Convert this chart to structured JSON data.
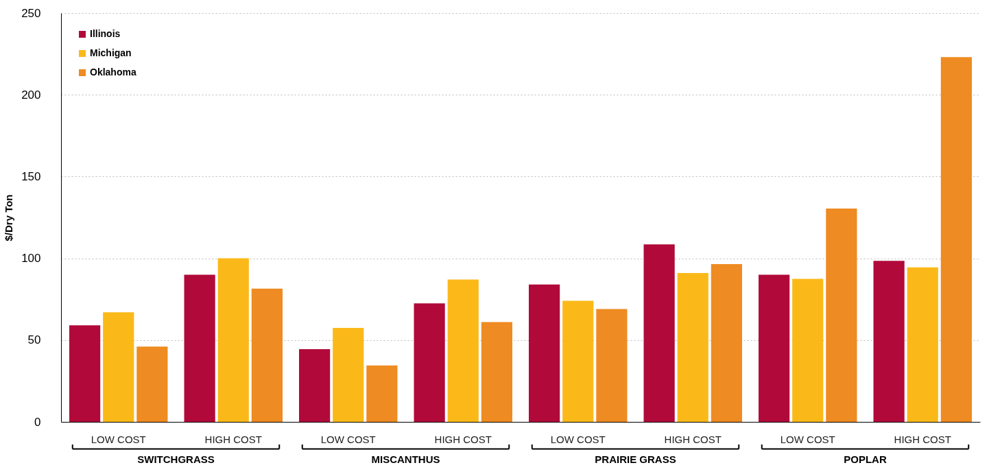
{
  "chart_data": {
    "type": "bar",
    "ylabel": "$/Dry Ton",
    "categories": [
      "LOW COST",
      "HIGH COST",
      "LOW COST",
      "HIGH COST",
      "LOW COST",
      "HIGH COST",
      "LOW COST",
      "HIGH COST"
    ],
    "series": [
      {
        "name": "Illinois",
        "color": "#b10a3a",
        "values": [
          59,
          90,
          44.5,
          72.5,
          84,
          108.5,
          90,
          98.5
        ]
      },
      {
        "name": "Michigan",
        "color": "#fbb919",
        "values": [
          67,
          100,
          57.5,
          87,
          74,
          91,
          87.5,
          94.5
        ]
      },
      {
        "name": "Oklahoma",
        "color": "#ee8b22",
        "values": [
          46,
          81.5,
          34.5,
          61,
          69,
          96.5,
          130.5,
          223
        ]
      }
    ],
    "annotations": [
      "SWITCHGRASS",
      "MISCANTHUS",
      "PRAIRIE GRASS",
      "POPLAR"
    ],
    "ylim": [
      0,
      250
    ],
    "yticks": [
      0,
      50,
      100,
      150,
      200,
      250
    ],
    "grid": "y",
    "legend": "top left"
  }
}
